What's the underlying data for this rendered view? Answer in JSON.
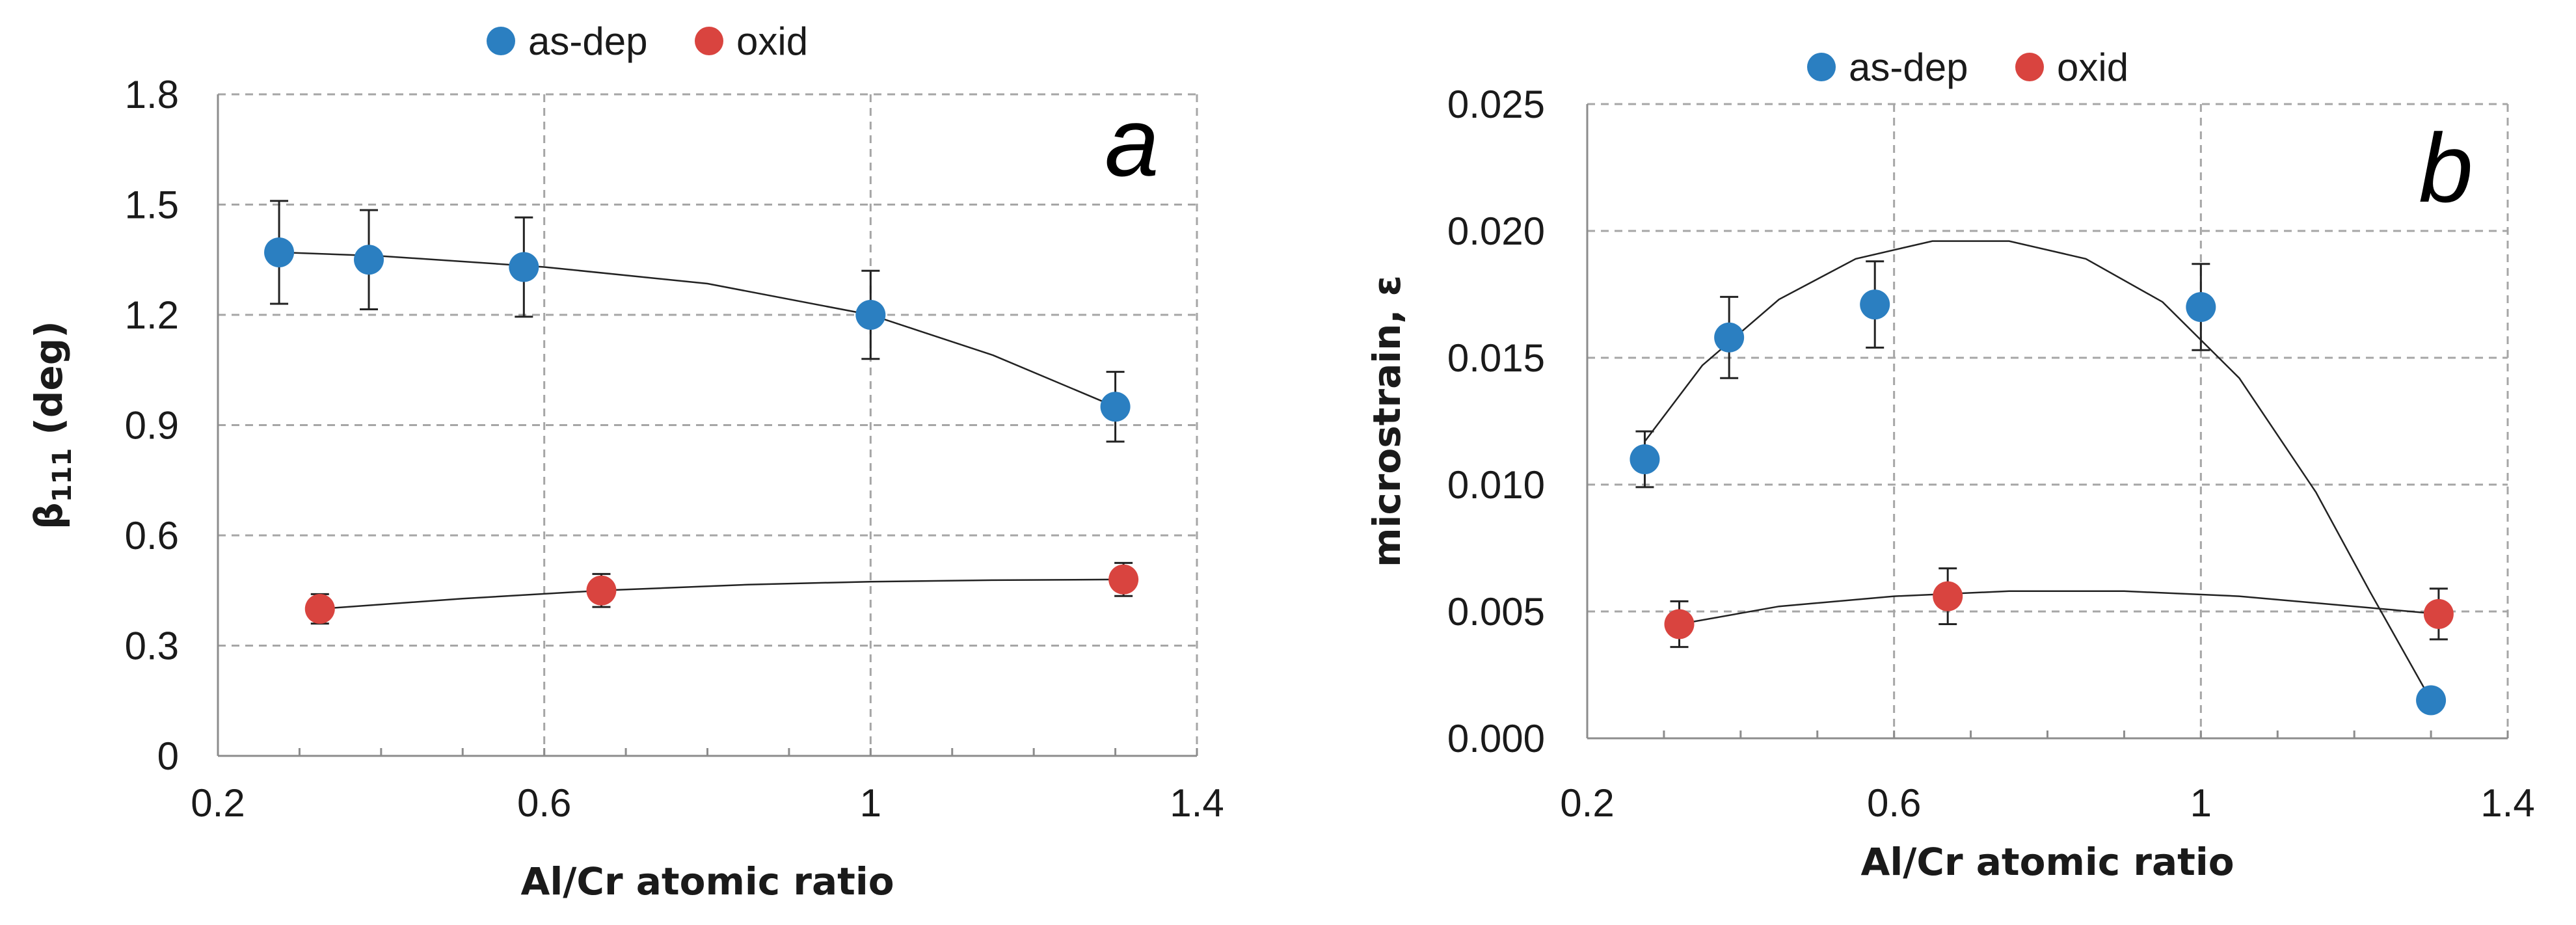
{
  "chart_data": [
    {
      "type": "scatter",
      "panel": "a",
      "xlabel": "Al/Cr atomic ratio",
      "ylabel_main": "β",
      "ylabel_sub": "111",
      "ylabel_rest": " (deg)",
      "xlim": [
        0.2,
        1.4
      ],
      "ylim": [
        0,
        1.8
      ],
      "xticks": [
        0.2,
        0.6,
        1.0,
        1.4
      ],
      "xtick_labels": [
        "0.2",
        "0.6",
        "1",
        "1.4"
      ],
      "yticks": [
        0,
        0.3,
        0.6,
        0.9,
        1.2,
        1.5,
        1.8
      ],
      "ytick_labels": [
        "0",
        "0.3",
        "0.6",
        "0.9",
        "1.2",
        "1.5",
        "1.8"
      ],
      "legend": [
        "as-dep",
        "oxid"
      ],
      "legend_position": "top",
      "series": [
        {
          "name": "as-dep",
          "color": "#2b7fc1",
          "x": [
            0.275,
            0.385,
            0.575,
            1.0,
            1.3
          ],
          "y": [
            1.37,
            1.35,
            1.33,
            1.2,
            0.95
          ],
          "err": [
            0.14,
            0.135,
            0.135,
            0.12,
            0.095
          ],
          "trend_x": [
            0.275,
            0.4,
            0.6,
            0.8,
            1.0,
            1.15,
            1.3
          ],
          "trend_y": [
            1.37,
            1.36,
            1.33,
            1.285,
            1.2,
            1.09,
            0.95
          ]
        },
        {
          "name": "oxid",
          "color": "#d9443f",
          "x": [
            0.325,
            0.67,
            1.31
          ],
          "y": [
            0.4,
            0.45,
            0.48
          ],
          "err": [
            0.04,
            0.045,
            0.045
          ],
          "trend_x": [
            0.325,
            0.5,
            0.67,
            0.85,
            1.0,
            1.15,
            1.31
          ],
          "trend_y": [
            0.4,
            0.428,
            0.45,
            0.466,
            0.474,
            0.478,
            0.48
          ]
        }
      ]
    },
    {
      "type": "scatter",
      "panel": "b",
      "xlabel": "Al/Cr atomic ratio",
      "ylabel": "microstrain, ε",
      "xlim": [
        0.2,
        1.4
      ],
      "ylim": [
        0,
        0.025
      ],
      "xticks": [
        0.2,
        0.6,
        1.0,
        1.4
      ],
      "xtick_labels": [
        "0.2",
        "0.6",
        "1",
        "1.4"
      ],
      "yticks": [
        0,
        0.005,
        0.01,
        0.015,
        0.02,
        0.025
      ],
      "ytick_labels": [
        "0.000",
        "0.005",
        "0.010",
        "0.015",
        "0.020",
        "0.025"
      ],
      "legend": [
        "as-dep",
        "oxid"
      ],
      "legend_position": "top",
      "series": [
        {
          "name": "as-dep",
          "color": "#2b7fc1",
          "x": [
            0.275,
            0.385,
            0.575,
            1.0,
            1.3
          ],
          "y": [
            0.011,
            0.0158,
            0.0171,
            0.017,
            0.0015
          ],
          "err": [
            0.0011,
            0.0016,
            0.0017,
            0.0017,
            0
          ],
          "trend_x": [
            0.275,
            0.35,
            0.45,
            0.55,
            0.65,
            0.75,
            0.85,
            0.95,
            1.05,
            1.15,
            1.22,
            1.3
          ],
          "trend_y": [
            0.0117,
            0.0147,
            0.0173,
            0.0189,
            0.0196,
            0.0196,
            0.0189,
            0.0172,
            0.0142,
            0.0097,
            0.0058,
            0.0015
          ]
        },
        {
          "name": "oxid",
          "color": "#d9443f",
          "x": [
            0.32,
            0.67,
            1.31
          ],
          "y": [
            0.0045,
            0.0056,
            0.0049
          ],
          "err": [
            0.0009,
            0.0011,
            0.001
          ],
          "trend_x": [
            0.32,
            0.45,
            0.6,
            0.75,
            0.9,
            1.05,
            1.2,
            1.31
          ],
          "trend_y": [
            0.0045,
            0.0052,
            0.0056,
            0.0058,
            0.0058,
            0.0056,
            0.0052,
            0.0049
          ]
        }
      ]
    }
  ]
}
